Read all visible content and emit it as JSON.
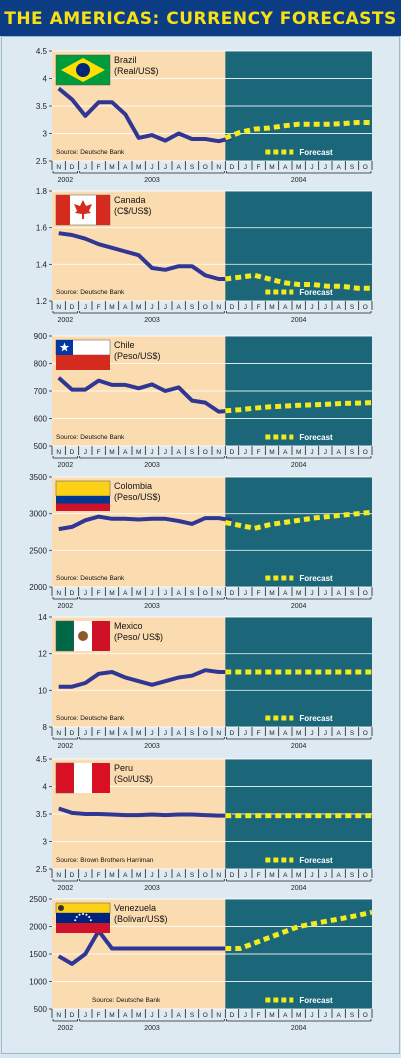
{
  "title": "THE AMERICAS: CURRENCY FORECASTS",
  "legend_forecast": "Forecast",
  "colors": {
    "title_bg": "#0c3c84",
    "title_text": "#f7e112",
    "history_bg": "#fbdcb1",
    "forecast_bg": "#1b6679",
    "history_line": "#2f3694",
    "forecast_line": "#f4ea1d",
    "page_bg": "#d7e7f0"
  },
  "month_labels": [
    "N",
    "D",
    "J",
    "F",
    "M",
    "A",
    "M",
    "J",
    "J",
    "A",
    "S",
    "O",
    "N",
    "D",
    "J",
    "F",
    "M",
    "A",
    "M",
    "J",
    "J",
    "A",
    "S",
    "O"
  ],
  "year_labels": [
    "2002",
    "2003",
    "2004"
  ],
  "chart_data": [
    {
      "type": "line",
      "country": "Brazil",
      "currency": "(Real/US$)",
      "source": "Source: Deutsche Bank",
      "ylim": [
        2.5,
        4.5
      ],
      "yticks": [
        2.5,
        3.0,
        3.5,
        4.0,
        4.5
      ],
      "history": [
        3.82,
        3.62,
        3.32,
        3.57,
        3.57,
        3.35,
        2.92,
        2.97,
        2.87,
        3.0,
        2.9,
        2.9,
        2.86,
        2.92
      ],
      "forecast": [
        2.92,
        3.02,
        3.08,
        3.1,
        3.14,
        3.17,
        3.17,
        3.17,
        3.18,
        3.2,
        3.2
      ]
    },
    {
      "type": "line",
      "country": "Canada",
      "currency": "(C$/US$)",
      "source": "Source: Deutsche Bank",
      "ylim": [
        1.2,
        1.8
      ],
      "yticks": [
        1.2,
        1.4,
        1.6,
        1.8
      ],
      "history": [
        1.57,
        1.56,
        1.54,
        1.51,
        1.49,
        1.47,
        1.45,
        1.38,
        1.37,
        1.39,
        1.39,
        1.34,
        1.32,
        1.32
      ],
      "forecast": [
        1.32,
        1.33,
        1.34,
        1.32,
        1.3,
        1.29,
        1.29,
        1.28,
        1.28,
        1.27,
        1.27
      ]
    },
    {
      "type": "line",
      "country": "Chile",
      "currency": "(Peso/US$)",
      "source": "Source: Deutsche Bank",
      "ylim": [
        500,
        900
      ],
      "yticks": [
        500,
        600,
        700,
        800,
        900
      ],
      "history": [
        748,
        705,
        705,
        738,
        722,
        722,
        710,
        724,
        700,
        713,
        665,
        658,
        625,
        628
      ],
      "forecast": [
        628,
        632,
        638,
        642,
        645,
        648,
        650,
        652,
        655,
        656,
        658
      ]
    },
    {
      "type": "line",
      "country": "Colombia",
      "currency": "(Peso/US$)",
      "source": "Source: Deutsche Bank",
      "ylim": [
        2000,
        3500
      ],
      "yticks": [
        2000,
        2500,
        3000,
        3500
      ],
      "history": [
        2790,
        2820,
        2910,
        2960,
        2930,
        2930,
        2920,
        2930,
        2930,
        2900,
        2860,
        2940,
        2940,
        2910
      ],
      "forecast": [
        2880,
        2840,
        2800,
        2850,
        2880,
        2910,
        2940,
        2960,
        2980,
        3000,
        3020
      ]
    },
    {
      "type": "line",
      "country": "Mexico",
      "currency": "(Peso/ US$)",
      "source": "Source: Deutsche Bank",
      "ylim": [
        8,
        14
      ],
      "yticks": [
        8,
        10,
        12,
        14
      ],
      "history": [
        10.2,
        10.2,
        10.4,
        10.9,
        11.0,
        10.7,
        10.5,
        10.3,
        10.5,
        10.7,
        10.8,
        11.1,
        11.0,
        11.0
      ],
      "forecast": [
        11.0,
        11.0,
        11.0,
        11.0,
        11.0,
        11.0,
        11.0,
        11.0,
        11.0,
        11.0,
        11.0
      ]
    },
    {
      "type": "line",
      "country": "Peru",
      "currency": "(Sol/US$)",
      "source": "Source: Brown Brothers Harriman",
      "ylim": [
        2.5,
        4.5
      ],
      "yticks": [
        2.5,
        3.0,
        3.5,
        4.0,
        4.5
      ],
      "history": [
        3.6,
        3.52,
        3.5,
        3.5,
        3.49,
        3.48,
        3.48,
        3.49,
        3.48,
        3.49,
        3.49,
        3.48,
        3.47,
        3.47
      ],
      "forecast": [
        3.47,
        3.47,
        3.47,
        3.47,
        3.47,
        3.47,
        3.47,
        3.47,
        3.47,
        3.47,
        3.47
      ]
    },
    {
      "type": "line",
      "country": "Venezuela",
      "currency": "(Bolivar/US$)",
      "source": "Source: Deutsche Bank",
      "ylim": [
        500,
        2500
      ],
      "yticks": [
        500,
        1000,
        1500,
        2000,
        2500
      ],
      "history": [
        1460,
        1320,
        1500,
        1920,
        1600,
        1600,
        1600,
        1600,
        1600,
        1600,
        1600,
        1600,
        1600,
        1600
      ],
      "forecast": [
        1600,
        1600,
        1700,
        1800,
        1900,
        2000,
        2050,
        2100,
        2150,
        2200,
        2260
      ]
    }
  ]
}
